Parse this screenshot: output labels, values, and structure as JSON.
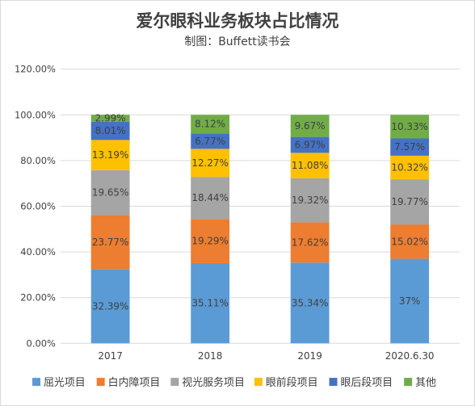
{
  "chart_data": {
    "type": "bar",
    "stacked": true,
    "title": "爱尔眼科业务板块占比情况",
    "subtitle": "制图：Buffett读书会",
    "categories": [
      "2017",
      "2018",
      "2019",
      "2020.6.30"
    ],
    "ylim": [
      0,
      120
    ],
    "yticks": [
      "0.00%",
      "20.00%",
      "40.00%",
      "60.00%",
      "80.00%",
      "100.00%",
      "120.00%"
    ],
    "grid": true,
    "legend_position": "bottom",
    "series": [
      {
        "name": "屈光项目",
        "color": "#5b9bd5",
        "values": [
          32.39,
          35.11,
          35.34,
          37.0
        ],
        "labels": [
          "32.39%",
          "35.11%",
          "35.34%",
          "37%"
        ]
      },
      {
        "name": "白内障项目",
        "color": "#ed7d31",
        "values": [
          23.77,
          19.29,
          17.62,
          15.02
        ],
        "labels": [
          "23.77%",
          "19.29%",
          "17.62%",
          "15.02%"
        ]
      },
      {
        "name": "视光服务项目",
        "color": "#a5a5a5",
        "values": [
          19.65,
          18.44,
          19.32,
          19.77
        ],
        "labels": [
          "19.65%",
          "18.44%",
          "19.32%",
          "19.77%"
        ]
      },
      {
        "name": "眼前段项目",
        "color": "#ffc000",
        "values": [
          13.19,
          12.27,
          11.08,
          10.32
        ],
        "labels": [
          "13.19%",
          "12.27%",
          "11.08%",
          "10.32%"
        ]
      },
      {
        "name": "眼后段项目",
        "color": "#4472c4",
        "values": [
          8.01,
          6.77,
          6.97,
          7.57
        ],
        "labels": [
          "8.01%",
          "6.77%",
          "6.97%",
          "7.57%"
        ]
      },
      {
        "name": "其他",
        "color": "#70ad47",
        "values": [
          2.99,
          8.12,
          9.67,
          10.33
        ],
        "labels": [
          "2.99%",
          "8.12%",
          "9.67%",
          "10.33%"
        ]
      }
    ]
  }
}
